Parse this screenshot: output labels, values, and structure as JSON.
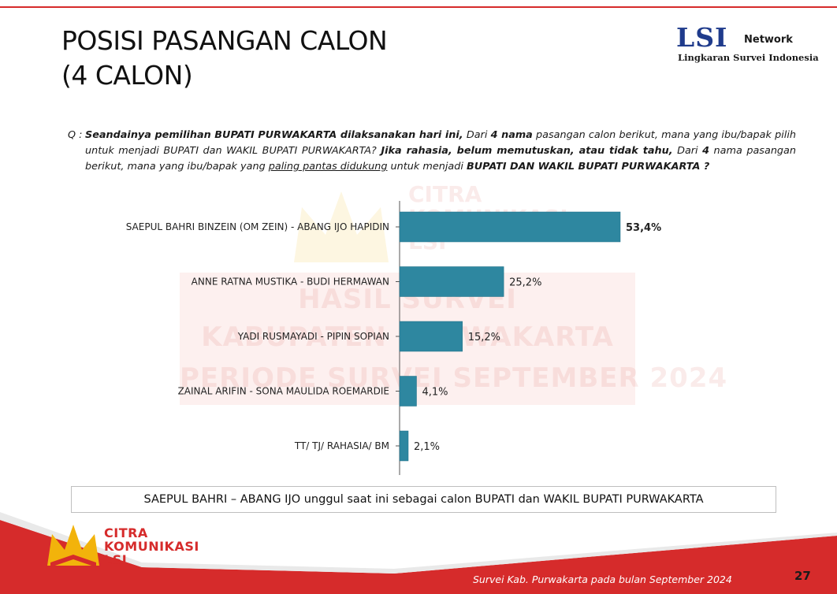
{
  "header": {
    "title_line1": "POSISI PASANGAN CALON",
    "title_line2": "(4 CALON)"
  },
  "logo": {
    "mark": "LSI",
    "network": "Network",
    "subtitle": "Lingkaran Survei Indonesia"
  },
  "question": {
    "prefix": "Q :",
    "part1": "Seandainya pemilihan BUPATI PURWAKARTA dilaksanakan hari ini,",
    "part2": " Dari ",
    "part3": "4 nama",
    "part4": " pasangan calon berikut, mana yang ibu/bapak pilih untuk menjadi BUPATI dan WAKIL BUPATI PURWAKARTA? ",
    "part5": "Jika rahasia, belum memutuskan, atau tidak tahu,",
    "part6": " Dari ",
    "part7": "4",
    "part8": " nama pasangan berikut, mana yang ibu/bapak yang ",
    "part9": "paling pantas didukung",
    "part10": " untuk menjadi ",
    "part11": "BUPATI  DAN WAKIL BUPATI PURWAKARTA ?"
  },
  "watermark": {
    "brand_line1": "CITRA",
    "brand_line2": "KOMUNIKASI",
    "brand_line3": "LSI",
    "line1": "HASIL SURVEI",
    "line2": "KABUPATEN PURWAKARTA",
    "line3": "PERIODE SURVEI SEPTEMBER 2024"
  },
  "chart_data": {
    "type": "bar",
    "orientation": "horizontal",
    "categories": [
      "SAEPUL BAHRI BINZEIN (OM ZEIN) - ABANG IJO HAPIDIN",
      "ANNE RATNA MUSTIKA - BUDI HERMAWAN",
      "YADI RUSMAYADI - PIPIN SOPIAN",
      "ZAINAL ARIFIN - SONA MAULIDA ROEMARDIE",
      "TT/ TJ/ RAHASIA/ BM"
    ],
    "values": [
      53.4,
      25.2,
      15.2,
      4.1,
      2.1
    ],
    "value_labels": [
      "53,4%",
      "25,2%",
      "15,2%",
      "4,1%",
      "2,1%"
    ],
    "highlight_index": 0,
    "xlim": [
      0,
      100
    ],
    "grid": false,
    "legend": "none",
    "bar_color": "#2e87a0"
  },
  "caption": "SAEPUL BAHRI – ABANG IJO unggul saat ini sebagai calon BUPATI dan WAKIL BUPATI PURWAKARTA",
  "footer": {
    "logo_line1": "CITRA",
    "logo_line2": "KOMUNIKASI",
    "logo_line3": "LSI",
    "note": "Survei Kab. Purwakarta pada bulan September 2024",
    "page": "27"
  },
  "colors": {
    "accent_red": "#d62b2b",
    "crown_gold": "#f2b30b"
  }
}
